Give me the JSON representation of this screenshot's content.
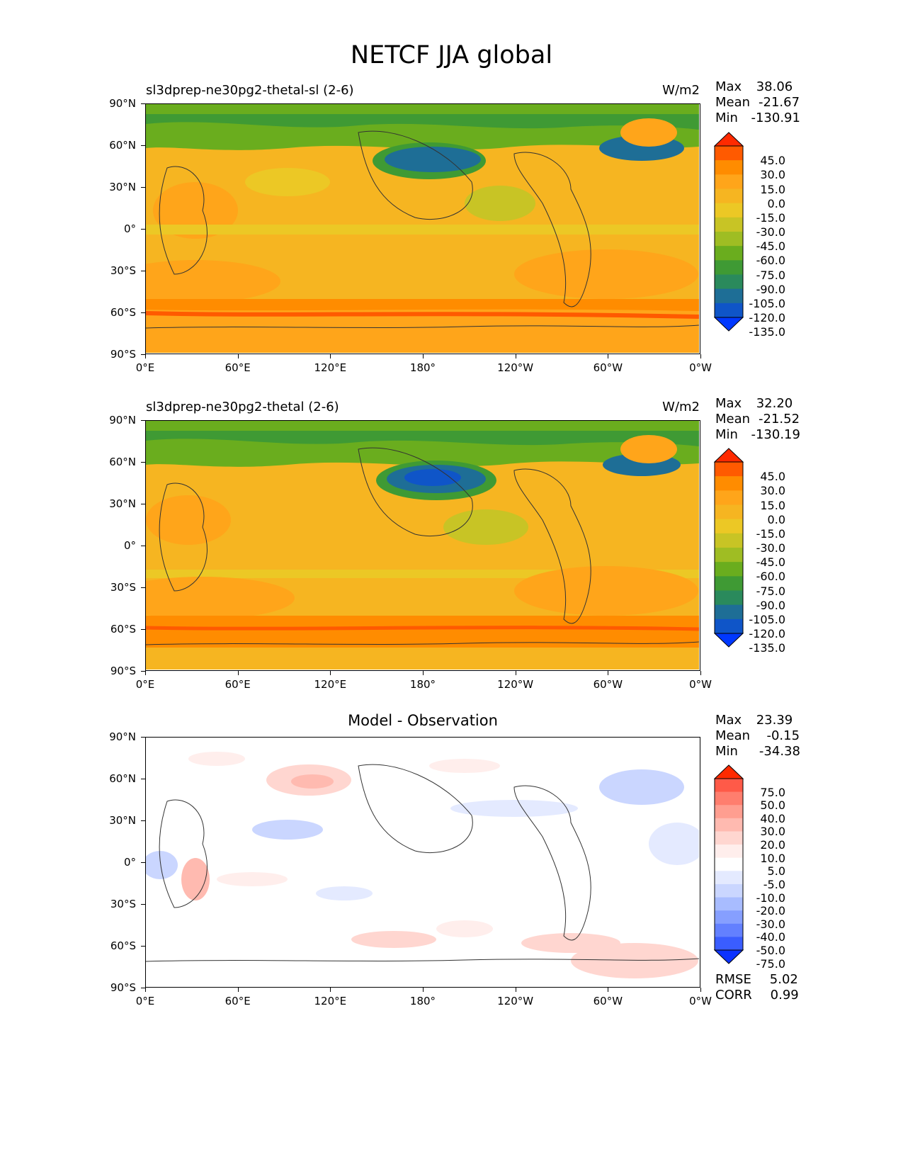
{
  "figure": {
    "title": "NETCF JJA global"
  },
  "axes": {
    "lat_labels": [
      "90°N",
      "60°N",
      "30°N",
      "0°",
      "30°S",
      "60°S",
      "90°S"
    ],
    "lon_labels": [
      "0°E",
      "60°E",
      "120°E",
      "180°",
      "120°W",
      "60°W",
      "0°W"
    ]
  },
  "panels": [
    {
      "left_title": "sl3dprep-ne30pg2-thetal-sl (2-6)",
      "center_title": "",
      "units": "W/m2",
      "stats": {
        "max_label": "Max",
        "max": "38.06",
        "mean_label": "Mean",
        "mean": "-21.67",
        "min_label": "Min",
        "min": "-130.91"
      }
    },
    {
      "left_title": "sl3dprep-ne30pg2-thetal (2-6)",
      "center_title": "",
      "units": "W/m2",
      "stats": {
        "max_label": "Max",
        "max": "32.20",
        "mean_label": "Mean",
        "mean": "-21.52",
        "min_label": "Min",
        "min": "-130.19"
      }
    },
    {
      "left_title": "",
      "center_title": "Model - Observation",
      "units": "",
      "stats": {
        "max_label": "Max",
        "max": "23.39",
        "mean_label": "Mean",
        "mean": "-0.15",
        "min_label": "Min",
        "min": "-34.38"
      },
      "extra": {
        "rmse_label": "RMSE",
        "rmse": "5.02",
        "corr_label": "CORR",
        "corr": "0.99"
      }
    }
  ],
  "colorbars": {
    "field": {
      "labels": [
        "45.0",
        "30.0",
        "15.0",
        "0.0",
        "-15.0",
        "-30.0",
        "-45.0",
        "-60.0",
        "-75.0",
        "-90.0",
        "-105.0",
        "-120.0",
        "-135.0"
      ],
      "colors": [
        "#ff2a00",
        "#ff5a00",
        "#ff8c00",
        "#ffa51a",
        "#f6b521",
        "#ecc825",
        "#c8c425",
        "#9fbd23",
        "#6aad1e",
        "#3f9a34",
        "#2a8a5c",
        "#1e6e96",
        "#0f55c8",
        "#0038ff"
      ]
    },
    "diff": {
      "labels": [
        "75.0",
        "50.0",
        "40.0",
        "30.0",
        "20.0",
        "10.0",
        "5.0",
        "-5.0",
        "-10.0",
        "-20.0",
        "-30.0",
        "-40.0",
        "-50.0",
        "-75.0"
      ],
      "colors": [
        "#ff2a00",
        "#ff5a48",
        "#ff7e6e",
        "#ff9e90",
        "#ffbab0",
        "#ffd6d0",
        "#ffeeec",
        "#ffffff",
        "#e4eaff",
        "#cad6ff",
        "#a8bcff",
        "#869fff",
        "#6380ff",
        "#3a5dff",
        "#0b32ff"
      ]
    }
  }
}
